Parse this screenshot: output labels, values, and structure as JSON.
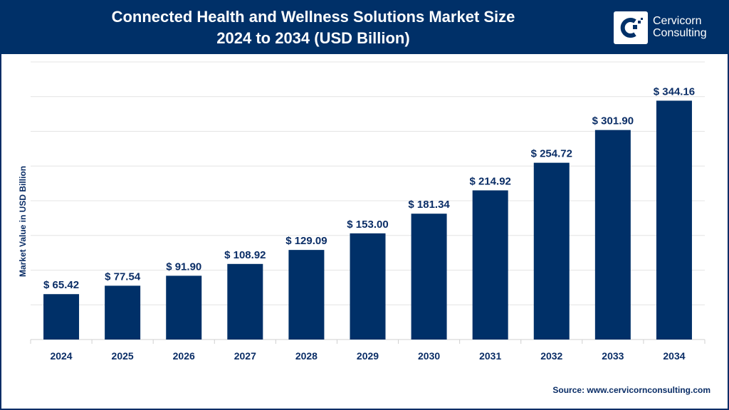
{
  "header": {
    "title_line1": "Connected Health and Wellness Solutions Market Size",
    "title_line2": "2024 to 2034 (USD Billion)",
    "logo_line1": "Cervicorn",
    "logo_line2": "Consulting"
  },
  "source": "Source: www.cervicornconsulting.com",
  "colors": {
    "bar": "#003068",
    "header": "#003068",
    "text": "#0a2d66"
  },
  "chart_data": {
    "type": "bar",
    "title": "Connected Health and Wellness Solutions Market Size 2024 to 2034 (USD Billion)",
    "ylabel": "Market Value in USD Billion",
    "xlabel": "",
    "categories": [
      "2024",
      "2025",
      "2026",
      "2027",
      "2028",
      "2029",
      "2030",
      "2031",
      "2032",
      "2033",
      "2034"
    ],
    "values": [
      65.42,
      77.54,
      91.9,
      108.92,
      129.09,
      153.0,
      181.34,
      214.92,
      254.72,
      301.9,
      344.16
    ],
    "data_labels": [
      "$ 65.42",
      "$ 77.54",
      "$ 91.90",
      "$ 108.92",
      "$ 129.09",
      "$ 153.00",
      "$ 181.34",
      "$ 214.92",
      "$ 254.72",
      "$ 301.90",
      "$ 344.16"
    ],
    "ylim": [
      0,
      400
    ],
    "grid": true,
    "ytick_step": 50,
    "legend": "none"
  }
}
